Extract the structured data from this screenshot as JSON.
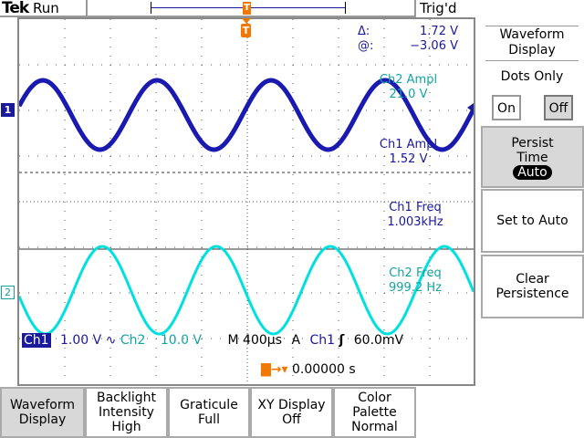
{
  "header": {
    "brand": "Tek",
    "state": "Run",
    "trigger_status": "Trig'd"
  },
  "cursor": {
    "delta_label": "Δ:",
    "delta_value": "1.72 V",
    "at_label": "@:",
    "at_value": "−3.06 V"
  },
  "measurements": [
    {
      "label": "Ch2 Ampl",
      "value": "21.0 V",
      "channel": "ch2"
    },
    {
      "label": "Ch1 Ampl",
      "value": "1.52 V",
      "channel": "ch1"
    },
    {
      "label": "Ch1 Freq",
      "value": "1.003kHz",
      "channel": "ch1"
    },
    {
      "label": "Ch2 Freq",
      "value": "999.2 Hz",
      "channel": "ch2"
    }
  ],
  "markers": {
    "ch1": "1",
    "ch2": "2",
    "trigger": "T"
  },
  "status": {
    "ch1_label": "Ch1",
    "ch1_scale": "1.00 V",
    "coupling_symbol": "∿",
    "ch2_label": "Ch2",
    "ch2_scale": "10.0 V",
    "timebase": "M 400µs",
    "trig_mode": "A",
    "trig_source": "Ch1",
    "trig_slope": "ʃ",
    "trig_level": "60.0mV",
    "trig_pos": "0.00000 s"
  },
  "side_menu": {
    "title": "Waveform Display",
    "dots_only": "Dots Only",
    "on": "On",
    "off": "Off",
    "dots_only_selected": "Off",
    "persist_label": "Persist Time",
    "persist_value": "Auto",
    "set_auto": "Set to Auto",
    "clear": "Clear Persistence"
  },
  "bottom_menu": [
    {
      "line1": "Waveform",
      "line2": "Display",
      "line3": ""
    },
    {
      "line1": "Backlight",
      "line2": "Intensity",
      "line3": "High"
    },
    {
      "line1": "Graticule",
      "line2": "Full",
      "line3": ""
    },
    {
      "line1": "XY Display",
      "line2": "Off",
      "line3": ""
    },
    {
      "line1": "Color",
      "line2": "Palette",
      "line3": "Normal"
    }
  ],
  "colors": {
    "ch1": "#1a1ab0",
    "ch2": "#00e0e0",
    "trigger": "#f07800",
    "selected_bg": "#d8d8d8"
  }
}
